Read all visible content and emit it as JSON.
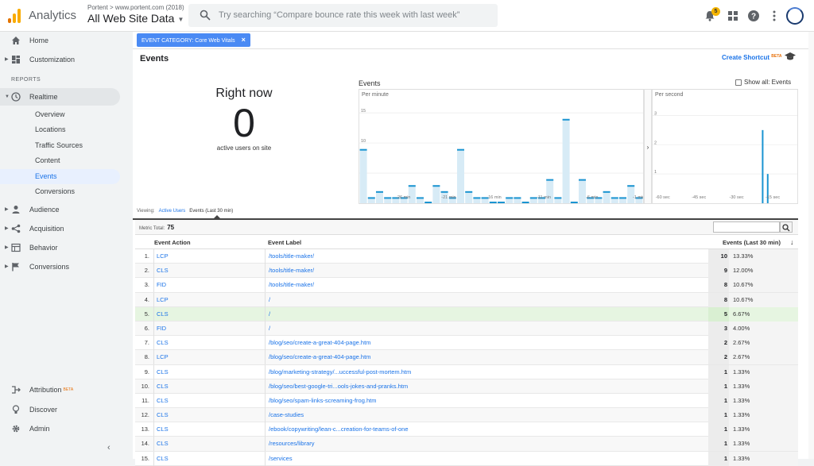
{
  "topbar": {
    "app_name": "Analytics",
    "account_crumb": "Portent > www.portent.com (2018)",
    "view_name": "All Web Site Data",
    "search_placeholder": "Try searching “Compare bounce rate this week with last week”",
    "notification_count": "5"
  },
  "sidebar": {
    "home": "Home",
    "customization": "Customization",
    "reports_heading": "REPORTS",
    "realtime": "Realtime",
    "realtime_items": [
      "Overview",
      "Locations",
      "Traffic Sources",
      "Content",
      "Events",
      "Conversions"
    ],
    "audience": "Audience",
    "acquisition": "Acquisition",
    "behavior": "Behavior",
    "conversions": "Conversions",
    "attribution": "Attribution",
    "attribution_beta": "BETA",
    "discover": "Discover",
    "admin": "Admin"
  },
  "filter": {
    "chip": "EVENT CATEGORY: Core Web Vitals"
  },
  "page": {
    "title": "Events",
    "shortcut": "Create Shortcut",
    "shortcut_beta": "BETA"
  },
  "right_now": {
    "title": "Right now",
    "value": "0",
    "subtitle": "active users on site"
  },
  "events_chart": {
    "title": "Events",
    "show_all": "Show all: Events",
    "per_minute_label": "Per minute",
    "per_second_label": "Per second"
  },
  "chart_data": [
    {
      "type": "bar",
      "title": "Per minute",
      "y_ticks": [
        "15",
        "10",
        "5"
      ],
      "x_ticks": [
        "-26 min",
        "-21 min",
        "-16 min",
        "-11 min",
        "-6 min",
        "-1 min"
      ],
      "values": [
        9,
        1,
        2,
        1,
        1,
        1,
        3,
        1,
        0,
        3,
        2,
        1,
        9,
        2,
        1,
        1,
        0,
        0,
        1,
        1,
        0,
        1,
        1,
        4,
        1,
        14,
        0,
        4,
        1,
        1,
        2,
        1,
        1,
        3,
        1
      ],
      "ylim": [
        0,
        17
      ]
    },
    {
      "type": "bar",
      "title": "Per second",
      "y_ticks": [
        "3",
        "2",
        "1"
      ],
      "x_ticks": [
        "-60 sec",
        "-45 sec",
        "-30 sec",
        "-15 sec"
      ],
      "values": [
        2.5,
        1
      ],
      "ylim": [
        0,
        3.5
      ]
    }
  ],
  "viewing": {
    "label": "Viewing:",
    "active_users": "Active Users",
    "events": "Events (Last 30 min)"
  },
  "table": {
    "metric_total_label": "Metric Total:",
    "metric_total": "75",
    "headers": [
      "Event Action",
      "Event Label",
      "Events (Last 30 min)"
    ],
    "rows": [
      {
        "idx": "1.",
        "action": "LCP",
        "label": "/tools/title-maker/",
        "count": "10",
        "pct": "13.33%"
      },
      {
        "idx": "2.",
        "action": "CLS",
        "label": "/tools/title-maker/",
        "count": "9",
        "pct": "12.00%"
      },
      {
        "idx": "3.",
        "action": "FID",
        "label": "/tools/title-maker/",
        "count": "8",
        "pct": "10.67%"
      },
      {
        "idx": "4.",
        "action": "LCP",
        "label": "/",
        "count": "8",
        "pct": "10.67%"
      },
      {
        "idx": "5.",
        "action": "CLS",
        "label": "/",
        "count": "5",
        "pct": "6.67%"
      },
      {
        "idx": "6.",
        "action": "FID",
        "label": "/",
        "count": "3",
        "pct": "4.00%"
      },
      {
        "idx": "7.",
        "action": "CLS",
        "label": "/blog/seo/create-a-great-404-page.htm",
        "count": "2",
        "pct": "2.67%"
      },
      {
        "idx": "8.",
        "action": "LCP",
        "label": "/blog/seo/create-a-great-404-page.htm",
        "count": "2",
        "pct": "2.67%"
      },
      {
        "idx": "9.",
        "action": "CLS",
        "label": "/blog/marketing-strategy/...uccessful-post-mortem.htm",
        "count": "1",
        "pct": "1.33%"
      },
      {
        "idx": "10.",
        "action": "CLS",
        "label": "/blog/seo/best-google-tri...ools-jokes-and-pranks.htm",
        "count": "1",
        "pct": "1.33%"
      },
      {
        "idx": "11.",
        "action": "CLS",
        "label": "/blog/seo/spam-links-screaming-frog.htm",
        "count": "1",
        "pct": "1.33%"
      },
      {
        "idx": "12.",
        "action": "CLS",
        "label": "/case-studies",
        "count": "1",
        "pct": "1.33%"
      },
      {
        "idx": "13.",
        "action": "CLS",
        "label": "/ebook/copywriting/lean-c...creation-for-teams-of-one",
        "count": "1",
        "pct": "1.33%"
      },
      {
        "idx": "14.",
        "action": "CLS",
        "label": "/resources/library",
        "count": "1",
        "pct": "1.33%"
      },
      {
        "idx": "15.",
        "action": "CLS",
        "label": "/services",
        "count": "1",
        "pct": "1.33%"
      }
    ]
  },
  "colors": {
    "bar": "#1a94d1",
    "accent": "#1a73e8",
    "filter_chip": "#4a8af4",
    "highlight_row": "#e6f5e1"
  }
}
